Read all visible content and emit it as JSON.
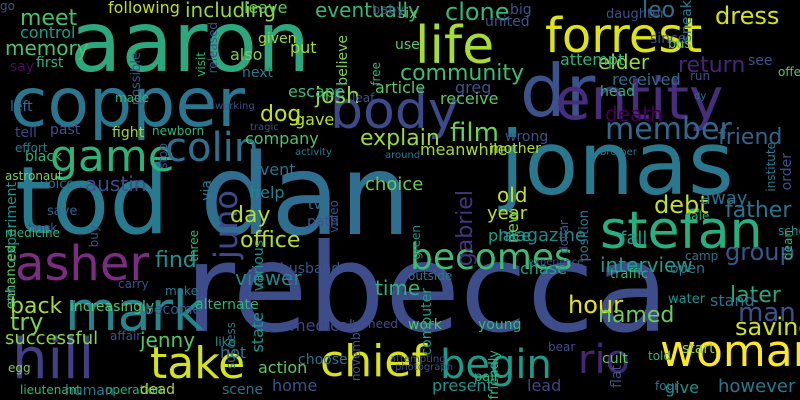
{
  "words": [
    {
      "text": "rebecca",
      "color": "#3d4d8a"
    },
    {
      "text": "dan",
      "color": "#2f6e8e"
    },
    {
      "text": "aaron",
      "color": "#2ea67e"
    },
    {
      "text": "tod",
      "color": "#287a8e"
    },
    {
      "text": "jonas",
      "color": "#2a788e"
    },
    {
      "text": "dr",
      "color": "#3b528b"
    },
    {
      "text": "forrest",
      "color": "#dde318"
    },
    {
      "text": "copper",
      "color": "#2a768e"
    },
    {
      "text": "entity",
      "color": "#472d7b"
    },
    {
      "text": "stefan",
      "color": "#29af7f"
    },
    {
      "text": "life",
      "color": "#a8db34"
    },
    {
      "text": "body",
      "color": "#3e4989"
    },
    {
      "text": "begin",
      "color": "#1f9a8a"
    },
    {
      "text": "chief",
      "color": "#d8e219"
    },
    {
      "text": "woman",
      "color": "#fde725"
    },
    {
      "text": "hill",
      "color": "#433e85"
    },
    {
      "text": "take",
      "color": "#d2e21b"
    },
    {
      "text": "mark",
      "color": "#25848e"
    },
    {
      "text": "asher",
      "color": "#7a2d81"
    },
    {
      "text": "game",
      "color": "#2db27d"
    },
    {
      "text": "colin",
      "color": "#2d718e"
    },
    {
      "text": "member",
      "color": "#31688e"
    },
    {
      "text": "becomes",
      "color": "#3fbc73"
    },
    {
      "text": "rio",
      "color": "#482677"
    },
    {
      "text": "juno",
      "color": "#3f4889"
    },
    {
      "text": "community",
      "color": "#3dbc74"
    },
    {
      "text": "return",
      "color": "#482475"
    },
    {
      "text": "dress",
      "color": "#d5e21a"
    },
    {
      "text": "friend",
      "color": "#33638d"
    },
    {
      "text": "father",
      "color": "#2c738e"
    },
    {
      "text": "group",
      "color": "#38588c"
    },
    {
      "text": "later",
      "color": "#22a884"
    },
    {
      "text": "man",
      "color": "#3b528b"
    },
    {
      "text": "saving",
      "color": "#d0e11c"
    },
    {
      "text": "hour",
      "color": "#e5e419"
    },
    {
      "text": "named",
      "color": "#6ccd5a"
    },
    {
      "text": "interview",
      "color": "#1e9b8a"
    },
    {
      "text": "viewer",
      "color": "#25858e"
    },
    {
      "text": "time",
      "color": "#2fb47c"
    },
    {
      "text": "day",
      "color": "#b5de2b"
    },
    {
      "text": "find",
      "color": "#21918c"
    },
    {
      "text": "try",
      "color": "#7ad151"
    },
    {
      "text": "back",
      "color": "#a2da37"
    },
    {
      "text": "jenny",
      "color": "#56c667"
    },
    {
      "text": "state",
      "color": "#1f968b"
    },
    {
      "text": "home",
      "color": "#3b528b"
    },
    {
      "text": "action",
      "color": "#5ec962"
    },
    {
      "text": "hot",
      "color": "#2e6f8e"
    },
    {
      "text": "medical",
      "color": "#3f4788"
    },
    {
      "text": "present",
      "color": "#20938c"
    },
    {
      "text": "lead",
      "color": "#404588"
    },
    {
      "text": "give",
      "color": "#21918c"
    },
    {
      "text": "however",
      "color": "#2a788e"
    },
    {
      "text": "successful",
      "color": "#86d549"
    },
    {
      "text": "austin",
      "color": "#3c4f8a"
    },
    {
      "text": "film",
      "color": "#6ece58"
    },
    {
      "text": "explain",
      "color": "#9bd93c"
    },
    {
      "text": "old",
      "color": "#c8e020"
    },
    {
      "text": "year",
      "color": "#bddf26"
    },
    {
      "text": "debt",
      "color": "#c2df23"
    },
    {
      "text": "magazine",
      "color": "#24878e"
    },
    {
      "text": "elder",
      "color": "#9dd93b"
    },
    {
      "text": "clone",
      "color": "#35b779"
    },
    {
      "text": "leo",
      "color": "#2c728e"
    },
    {
      "text": "meet",
      "color": "#46c06f"
    },
    {
      "text": "memory",
      "color": "#4cc26c"
    },
    {
      "text": "control",
      "color": "#1f9e89"
    },
    {
      "text": "following",
      "color": "#c0df25"
    },
    {
      "text": "including",
      "color": "#94d741"
    },
    {
      "text": "eventually",
      "color": "#35b779"
    },
    {
      "text": "leave",
      "color": "#63cb5f"
    },
    {
      "text": "josh",
      "color": "#8fd744"
    },
    {
      "text": "dog",
      "color": "#c6e021"
    },
    {
      "text": "gave",
      "color": "#bade28"
    },
    {
      "text": "company",
      "color": "#4ac16d"
    },
    {
      "text": "event",
      "color": "#2c728e"
    },
    {
      "text": "help",
      "color": "#25848e"
    },
    {
      "text": "office",
      "color": "#b2dd2d"
    },
    {
      "text": "gabriel",
      "color": "#453581"
    },
    {
      "text": "new",
      "color": "#73d056"
    },
    {
      "text": "place",
      "color": "#1f9e89"
    },
    {
      "text": "chase",
      "color": "#20a386"
    },
    {
      "text": "fall",
      "color": "#1e9c89"
    },
    {
      "text": "away",
      "color": "#2e6f8e"
    },
    {
      "text": "received",
      "color": "#2e6e8e"
    },
    {
      "text": "attempt",
      "color": "#2fb47c"
    },
    {
      "text": "death",
      "color": "#440154"
    },
    {
      "text": "head",
      "color": "#31b57b"
    },
    {
      "text": "wrong",
      "color": "#3b528b"
    },
    {
      "text": "mother",
      "color": "#b2dd2d"
    },
    {
      "text": "meanwhile",
      "color": "#a5db36"
    },
    {
      "text": "choice",
      "color": "#67cc5c"
    },
    {
      "text": "greg",
      "color": "#3b528b"
    },
    {
      "text": "receive",
      "color": "#5cc863"
    },
    {
      "text": "article",
      "color": "#58c765"
    },
    {
      "text": "escape",
      "color": "#3fbc73"
    },
    {
      "text": "put",
      "color": "#a0da39"
    },
    {
      "text": "given",
      "color": "#9bd93c"
    },
    {
      "text": "also",
      "color": "#7cd250"
    },
    {
      "text": "next",
      "color": "#2a788e"
    },
    {
      "text": "first",
      "color": "#2fb47c"
    },
    {
      "text": "say",
      "color": "#470d60"
    },
    {
      "text": "left",
      "color": "#2f6c8e"
    },
    {
      "text": "past",
      "color": "#3b528b"
    },
    {
      "text": "tell",
      "color": "#3f4889"
    },
    {
      "text": "fight",
      "color": "#9bd93c"
    },
    {
      "text": "newborn",
      "color": "#35b779"
    },
    {
      "text": "astronaut",
      "color": "#7ad151"
    },
    {
      "text": "experiment",
      "color": "#21918c"
    },
    {
      "text": "voice",
      "color": "#2c728e"
    },
    {
      "text": "save",
      "color": "#31688e"
    },
    {
      "text": "book",
      "color": "#3b528b"
    },
    {
      "text": "set",
      "color": "#2a788e"
    },
    {
      "text": "increasingly",
      "color": "#56c667"
    },
    {
      "text": "affair",
      "color": "#3b528b"
    },
    {
      "text": "like",
      "color": "#21918c"
    },
    {
      "text": "become",
      "color": "#3b528b"
    },
    {
      "text": "make",
      "color": "#2a788e"
    },
    {
      "text": "husband",
      "color": "#3b528b"
    },
    {
      "text": "choose",
      "color": "#2c728e"
    },
    {
      "text": "need",
      "color": "#3b528b"
    },
    {
      "text": "work",
      "color": "#56c667"
    },
    {
      "text": "young",
      "color": "#35b779"
    },
    {
      "text": "computer",
      "color": "#1f9e89"
    },
    {
      "text": "pair",
      "color": "#2fb47c"
    },
    {
      "text": "bear",
      "color": "#3b528b"
    },
    {
      "text": "cult",
      "color": "#5cc863"
    },
    {
      "text": "traffic",
      "color": "#2fb47c"
    },
    {
      "text": "water",
      "color": "#21918c"
    },
    {
      "text": "stand",
      "color": "#2a788e"
    },
    {
      "text": "start",
      "color": "#90d743"
    },
    {
      "text": "camp",
      "color": "#2c728e"
    },
    {
      "text": "open",
      "color": "#2a788e"
    },
    {
      "text": "school",
      "color": "#21918c"
    },
    {
      "text": "sale",
      "color": "#2fb47c"
    },
    {
      "text": "see",
      "color": "#3b528b"
    },
    {
      "text": "offer",
      "color": "#58c765"
    },
    {
      "text": "order",
      "color": "#3b528b"
    },
    {
      "text": "operation",
      "color": "#2fb47c"
    },
    {
      "text": "human",
      "color": "#2a788e"
    },
    {
      "text": "dead",
      "color": "#a5db36"
    },
    {
      "text": "lieutenant",
      "color": "#35b779"
    },
    {
      "text": "scene",
      "color": "#2c728e"
    },
    {
      "text": "flat",
      "color": "#3b528b"
    },
    {
      "text": "four",
      "color": "#2a788e"
    },
    {
      "text": "told",
      "color": "#2fb47c"
    },
    {
      "text": "daughter",
      "color": "#3b528b"
    },
    {
      "text": "since",
      "color": "#3b528b"
    },
    {
      "text": "bus",
      "color": "#5cc863"
    },
    {
      "text": "big",
      "color": "#3b528b"
    },
    {
      "text": "united",
      "color": "#3b528b"
    },
    {
      "text": "six",
      "color": "#5cc863"
    },
    {
      "text": "baby",
      "color": "#3b528b"
    },
    {
      "text": "use",
      "color": "#5cc863"
    },
    {
      "text": "free",
      "color": "#2fb47c"
    },
    {
      "text": "believe",
      "color": "#7ad151"
    },
    {
      "text": "released",
      "color": "#3b528b"
    },
    {
      "text": "visit",
      "color": "#2fb47c"
    },
    {
      "text": "possible",
      "color": "#3b528b"
    },
    {
      "text": "position",
      "color": "#2a788e"
    },
    {
      "text": "dollar",
      "color": "#3b528b"
    },
    {
      "text": "institute",
      "color": "#2a788e"
    },
    {
      "text": "dean",
      "color": "#2fb47c"
    },
    {
      "text": "friendly",
      "color": "#2fb47c"
    },
    {
      "text": "november",
      "color": "#3b528b"
    },
    {
      "text": "green",
      "color": "#21918c"
    },
    {
      "text": "various",
      "color": "#21918c"
    },
    {
      "text": "success",
      "color": "#2a788e"
    },
    {
      "text": "three",
      "color": "#2fb47c"
    },
    {
      "text": "alternate",
      "color": "#2fb47c"
    },
    {
      "text": "buy",
      "color": "#3b528b"
    },
    {
      "text": "carry",
      "color": "#3b528b"
    },
    {
      "text": "enhanced",
      "color": "#5cc863"
    },
    {
      "text": "medicine",
      "color": "#2fb47c"
    },
    {
      "text": "effort",
      "color": "#2a788e"
    },
    {
      "text": "black",
      "color": "#2fb47c"
    },
    {
      "text": "egg",
      "color": "#7ad151"
    },
    {
      "text": "tv",
      "color": "#2a788e"
    },
    {
      "text": "path",
      "color": "#3b528b"
    },
    {
      "text": "video",
      "color": "#3b528b"
    },
    {
      "text": "via",
      "color": "#2a788e"
    },
    {
      "text": "stop",
      "color": "#3b528b"
    },
    {
      "text": "leaf",
      "color": "#3b528b"
    },
    {
      "text": "working",
      "color": "#3b528b"
    },
    {
      "text": "tragic",
      "color": "#3b528b"
    },
    {
      "text": "activity",
      "color": "#2a788e"
    },
    {
      "text": "around",
      "color": "#2a788e"
    },
    {
      "text": "brother",
      "color": "#2a788e"
    },
    {
      "text": "experience",
      "color": "#3b528b"
    },
    {
      "text": "photograph",
      "color": "#3b528b"
    },
    {
      "text": "attempting",
      "color": "#3b528b"
    },
    {
      "text": "outside",
      "color": "#2a788e"
    },
    {
      "text": "made",
      "color": "#2fb47c"
    },
    {
      "text": "dy",
      "color": "#2a788e"
    },
    {
      "text": "run",
      "color": "#3b528b"
    },
    {
      "text": "sneak",
      "color": "#2a788e"
    },
    {
      "text": "go",
      "color": "#3b528b"
    }
  ]
}
